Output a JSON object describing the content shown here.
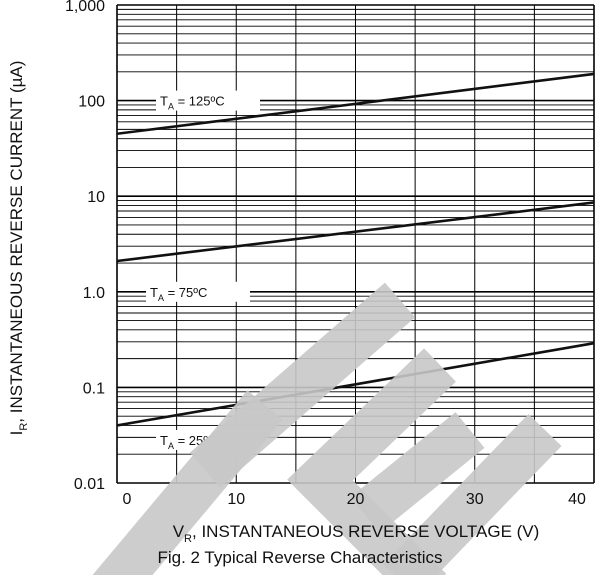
{
  "chart_data": {
    "type": "line",
    "title": "",
    "caption": "Fig. 2  Typical Reverse Characteristics",
    "xlabel_main": "V",
    "xlabel_sub": "R",
    "xlabel_rest": ", INSTANTANEOUS REVERSE VOLTAGE (V)",
    "ylabel_main": "I",
    "ylabel_sub": "R",
    "ylabel_rest": ", INSTANTANEOUS REVERSE CURRENT (µA)",
    "xlim": [
      0,
      40
    ],
    "ylim": [
      0.01,
      1000
    ],
    "yscale": "log",
    "grid": true,
    "x_ticks": [
      0,
      10,
      20,
      30,
      40
    ],
    "x_tick_labels": [
      "0",
      "10",
      "20",
      "30",
      "40"
    ],
    "y_ticks": [
      0.01,
      0.1,
      1.0,
      10,
      100,
      1000
    ],
    "y_tick_labels": [
      "0.01",
      "0.1",
      "1.0",
      "10",
      "100",
      "1,000"
    ],
    "series": [
      {
        "label_main": "T",
        "label_sub": "A",
        "label_rest": " = 125ºC",
        "x": [
          0,
          40
        ],
        "y": [
          45,
          190
        ]
      },
      {
        "label_main": "T",
        "label_sub": "A",
        "label_rest": " = 75ºC",
        "x": [
          0,
          40
        ],
        "y": [
          2.1,
          8.6
        ]
      },
      {
        "label_main": "T",
        "label_sub": "A",
        "label_rest": " = 25ºC",
        "x": [
          0,
          40
        ],
        "y": [
          0.04,
          0.29
        ]
      }
    ],
    "watermark_text": "TE",
    "colors": {
      "line": "#111111",
      "grid": "#000000",
      "watermark": "#c8c8c8"
    }
  }
}
